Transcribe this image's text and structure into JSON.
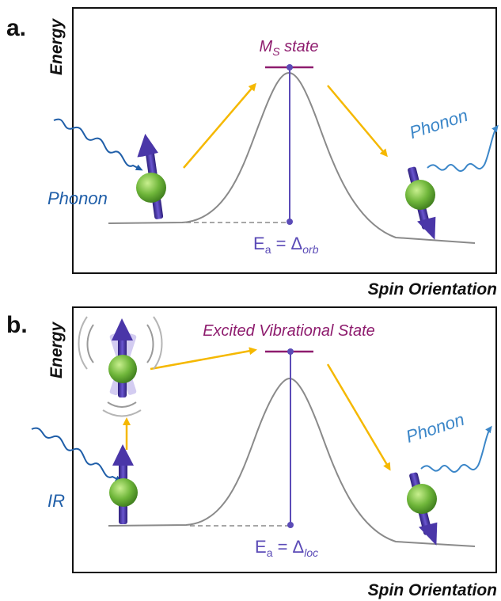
{
  "colors": {
    "curve": "#8a8a8a",
    "frame": "#111111",
    "state_line": "#8e1c6e",
    "state_glow": "#f3a6d8",
    "barrier_line": "#5b4bb7",
    "arrow_yellow": "#f5b800",
    "wave_dark": "#1f5ea8",
    "wave_light": "#3b86c8",
    "phonon_dark_text": "#1f5ea8",
    "phonon_light_text": "#3b86c8",
    "spin_arrow": "#4a36a8",
    "atom": "#6fb63a"
  },
  "panel_a": {
    "letter": "a.",
    "y_axis": "Energy",
    "x_axis": "Spin Orientation",
    "state_main": "M",
    "state_sub": "S",
    "state_rest": " state",
    "phonon_in": "Phonon",
    "phonon_out": "Phonon",
    "energy_main": "E",
    "energy_sub": "a",
    "energy_mid": " = Δ",
    "energy_tail": "orb"
  },
  "panel_b": {
    "letter": "b.",
    "y_axis": "Energy",
    "x_axis": "Spin Orientation",
    "state_label": "Excited Vibrational State",
    "phonon_in": "IR",
    "phonon_out": "Phonon",
    "energy_main": "E",
    "energy_sub": "a",
    "energy_mid": " = Δ",
    "energy_tail": "loc"
  }
}
